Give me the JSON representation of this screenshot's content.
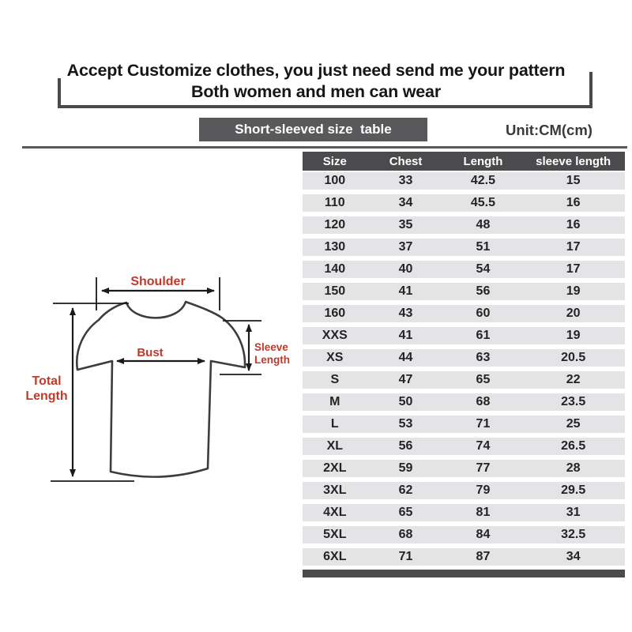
{
  "banner": {
    "line1": "Accept Customize clothes, you just need send me your pattern",
    "line2": "Both women and men can wear"
  },
  "title_bar": {
    "label": "Short-sleeved size  table",
    "unit": "Unit:CM(cm)"
  },
  "diagram": {
    "shoulder_label": "Shoulder",
    "bust_label": "Bust",
    "sleeve_label_line1": "Sleeve",
    "sleeve_label_line2": "Length",
    "total_label_line1": "Total",
    "total_label_line2": "Length",
    "label_color": "#c0392b"
  },
  "chart_data": {
    "type": "table",
    "title": "Short-sleeved size table",
    "unit": "CM(cm)",
    "columns": [
      "Size",
      "Chest",
      "Length",
      "sleeve length"
    ],
    "rows": [
      [
        "100",
        "33",
        "42.5",
        "15"
      ],
      [
        "110",
        "34",
        "45.5",
        "16"
      ],
      [
        "120",
        "35",
        "48",
        "16"
      ],
      [
        "130",
        "37",
        "51",
        "17"
      ],
      [
        "140",
        "40",
        "54",
        "17"
      ],
      [
        "150",
        "41",
        "56",
        "19"
      ],
      [
        "160",
        "43",
        "60",
        "20"
      ],
      [
        "XXS",
        "41",
        "61",
        "19"
      ],
      [
        "XS",
        "44",
        "63",
        "20.5"
      ],
      [
        "S",
        "47",
        "65",
        "22"
      ],
      [
        "M",
        "50",
        "68",
        "23.5"
      ],
      [
        "L",
        "53",
        "71",
        "25"
      ],
      [
        "XL",
        "56",
        "74",
        "26.5"
      ],
      [
        "2XL",
        "59",
        "77",
        "28"
      ],
      [
        "3XL",
        "62",
        "79",
        "29.5"
      ],
      [
        "4XL",
        "65",
        "81",
        "31"
      ],
      [
        "5XL",
        "68",
        "84",
        "32.5"
      ],
      [
        "6XL",
        "71",
        "87",
        "34"
      ]
    ]
  },
  "colors": {
    "bar_dark": "#4b4b4d",
    "title_box": "#59595b",
    "row_bg": "#e4e4e6",
    "accent_red": "#c0392b",
    "shirt_outline": "#3d3d3d"
  }
}
